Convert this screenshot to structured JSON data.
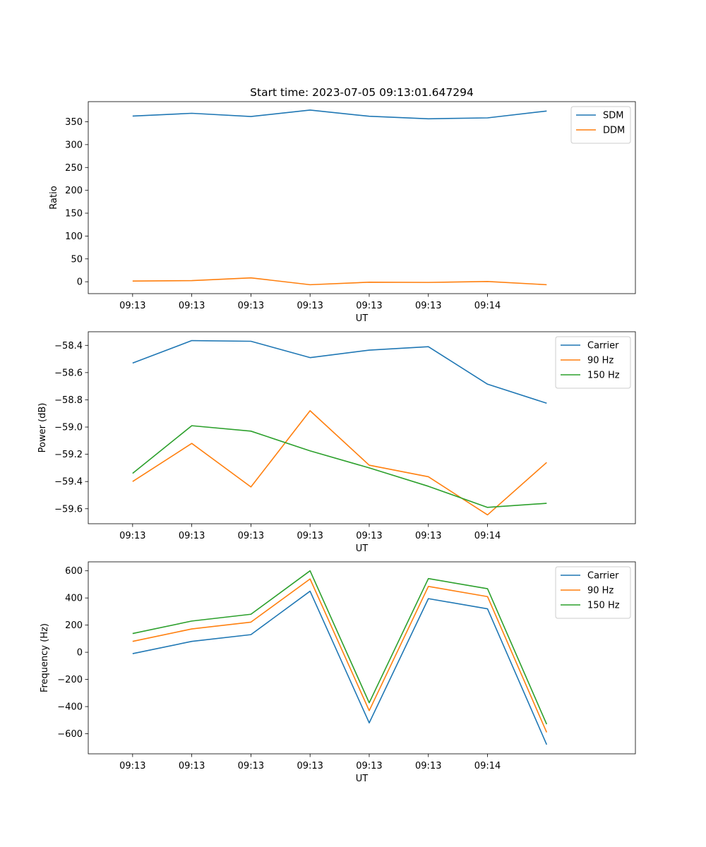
{
  "title": "Start time: 2023-07-05 09:13:01.647294",
  "colors": {
    "blue": "#1f77b4",
    "orange": "#ff7f0e",
    "green": "#2ca02c"
  },
  "chart_data": [
    {
      "type": "line",
      "xlabel": "UT",
      "ylabel": "Ratio",
      "xticks": [
        "09:13",
        "09:13",
        "09:13",
        "09:13",
        "09:13",
        "09:13",
        "09:14"
      ],
      "xlim": [
        -0.75,
        8.5
      ],
      "ylim": [
        -26,
        394
      ],
      "yticks": [
        0,
        50,
        100,
        150,
        200,
        250,
        300,
        350
      ],
      "ytick_labels": [
        "0",
        "50",
        "100",
        "150",
        "200",
        "250",
        "300",
        "350"
      ],
      "legend_position": "upper right",
      "x": [
        0,
        1,
        2,
        3,
        4,
        5,
        6,
        7
      ],
      "series": [
        {
          "name": "SDM",
          "color": "#1f77b4",
          "values": [
            362.5,
            368.5,
            361.5,
            375.5,
            362,
            356.5,
            358.5,
            373.5
          ]
        },
        {
          "name": "DDM",
          "color": "#ff7f0e",
          "values": [
            1.5,
            2.5,
            8.5,
            -6.5,
            -1,
            -1.5,
            0.5,
            -6.5
          ]
        }
      ]
    },
    {
      "type": "line",
      "xlabel": "UT",
      "ylabel": "Power (dB)",
      "xticks": [
        "09:13",
        "09:13",
        "09:13",
        "09:13",
        "09:13",
        "09:13",
        "09:14"
      ],
      "xlim": [
        -0.75,
        8.5
      ],
      "ylim": [
        -59.71,
        -58.3
      ],
      "yticks": [
        -59.6,
        -59.4,
        -59.2,
        -59.0,
        -58.8,
        -58.6,
        -58.4
      ],
      "ytick_labels": [
        "−59.6",
        "−59.4",
        "−59.2",
        "−59.0",
        "−58.8",
        "−58.6",
        "−58.4"
      ],
      "legend_position": "upper right",
      "x": [
        0,
        1,
        2,
        3,
        4,
        5,
        6,
        7
      ],
      "series": [
        {
          "name": "Carrier",
          "color": "#1f77b4",
          "values": [
            -58.53,
            -58.365,
            -58.37,
            -58.49,
            -58.435,
            -58.41,
            -58.685,
            -58.825
          ]
        },
        {
          "name": "90 Hz",
          "color": "#ff7f0e",
          "values": [
            -59.4,
            -59.12,
            -59.44,
            -58.88,
            -59.28,
            -59.365,
            -59.645,
            -59.26
          ]
        },
        {
          "name": "150 Hz",
          "color": "#2ca02c",
          "values": [
            -59.34,
            -58.99,
            -59.03,
            -59.175,
            -59.3,
            -59.435,
            -59.59,
            -59.56
          ]
        }
      ]
    },
    {
      "type": "line",
      "xlabel": "UT",
      "ylabel": "Frequency (Hz)",
      "xticks": [
        "09:13",
        "09:13",
        "09:13",
        "09:13",
        "09:13",
        "09:13",
        "09:14"
      ],
      "xlim": [
        -0.75,
        8.5
      ],
      "ylim": [
        -748,
        666
      ],
      "yticks": [
        -600,
        -400,
        -200,
        0,
        200,
        400,
        600
      ],
      "ytick_labels": [
        "−600",
        "−400",
        "−200",
        "0",
        "200",
        "400",
        "600"
      ],
      "legend_position": "upper right",
      "x": [
        0,
        1,
        2,
        3,
        4,
        5,
        6,
        7
      ],
      "series": [
        {
          "name": "Carrier",
          "color": "#1f77b4",
          "values": [
            -10,
            80,
            130,
            450,
            -520,
            395,
            320,
            -680
          ]
        },
        {
          "name": "90 Hz",
          "color": "#ff7f0e",
          "values": [
            80,
            172,
            222,
            540,
            -430,
            485,
            410,
            -590
          ]
        },
        {
          "name": "150 Hz",
          "color": "#2ca02c",
          "values": [
            138,
            230,
            280,
            600,
            -372,
            543,
            468,
            -530
          ]
        }
      ]
    }
  ]
}
